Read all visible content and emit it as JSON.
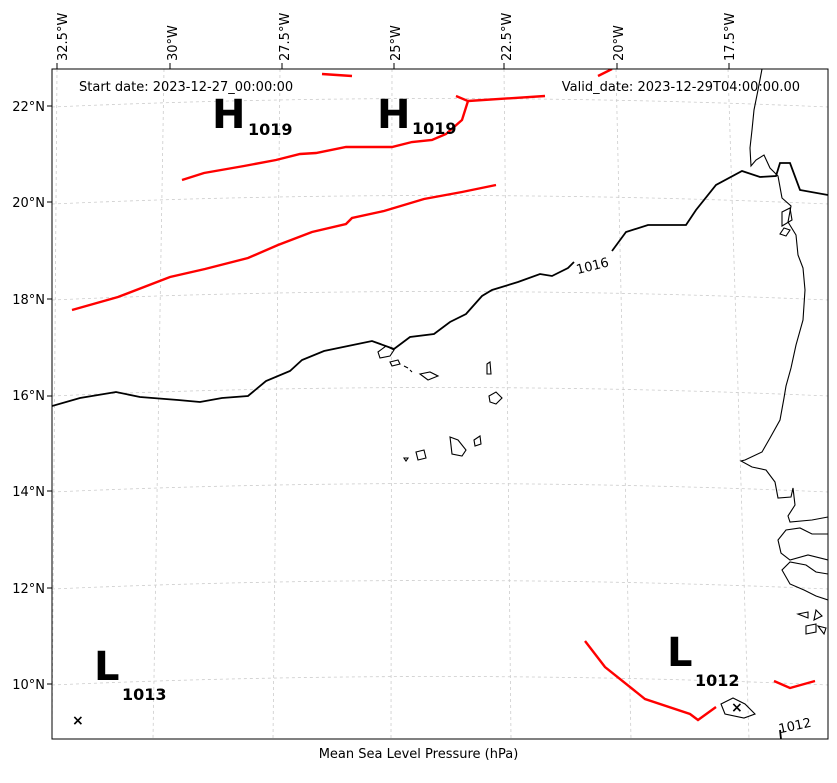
{
  "header": {
    "start_date": "Start date: 2023-12-27_00:00:00",
    "valid_date": "Valid_date: 2023-12-29T04:00:00.00"
  },
  "caption": "Mean Sea Level Pressure (hPa)",
  "axes": {
    "longitude_labels": [
      "32.5°W",
      "30°W",
      "27.5°W",
      "25°W",
      "22.5°W",
      "20°W",
      "17.5°W"
    ],
    "latitude_labels": [
      "22°N",
      "20°N",
      "18°N",
      "16°N",
      "14°N",
      "12°N",
      "10°N"
    ]
  },
  "contours": {
    "black_label_1016": "1016",
    "black_label_1012": "1012"
  },
  "systems": {
    "high_a": {
      "letter": "H",
      "value": "1019"
    },
    "high_b": {
      "letter": "H",
      "value": "1019"
    },
    "low_a": {
      "letter": "L",
      "value": "1013"
    },
    "low_b": {
      "letter": "L",
      "value": "1012"
    }
  },
  "colors": {
    "red_isobar": "#ff0000",
    "black_isobar": "#000000",
    "coastline": "#000000",
    "grid": "#cccccc"
  }
}
